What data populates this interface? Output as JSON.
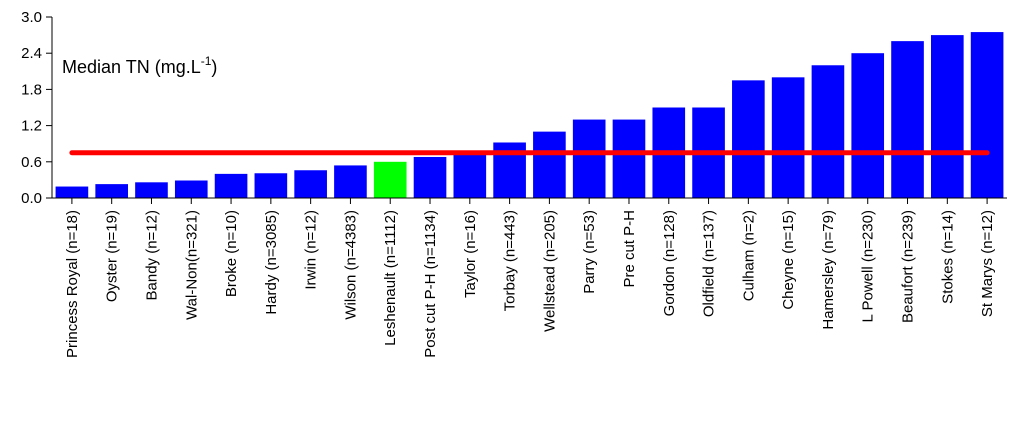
{
  "chart_data": {
    "type": "bar",
    "title": "Median TN (mg.L",
    "title_sup": "-1",
    "title_close": ")",
    "xlabel": "",
    "ylabel": "",
    "ylim": [
      0,
      3.0
    ],
    "yticks": [
      "0.0",
      "0.6",
      "1.2",
      "1.8",
      "2.4",
      "3.0"
    ],
    "ytick_values": [
      0,
      0.6,
      1.2,
      1.8,
      2.4,
      3.0
    ],
    "grid": false,
    "categories": [
      "Princess Royal (n=18)",
      "Oyster (n=19)",
      "Bandy (n=12)",
      "Wal-Non(n=321)",
      "Broke (n=10)",
      "Hardy (n=3085)",
      "Irwin (n=12)",
      "Wilson (n=4383)",
      "Leshenault (n=1112)",
      "Post cut P-H (n=1134)",
      "Taylor (n=16)",
      "Torbay (n=443)",
      "Wellstead (n=205)",
      "Parry (n=53)",
      "Pre cut P-H",
      "Gordon (n=128)",
      "Oldfield (n=137)",
      "Culham (n=2)",
      "Cheyne (n=15)",
      "Hamersley (n=79)",
      "L Powell (n=230)",
      "Beaufort (n=239)",
      "Stokes (n=14)",
      "St Marys (n=12)"
    ],
    "values": [
      0.19,
      0.23,
      0.26,
      0.29,
      0.4,
      0.41,
      0.46,
      0.54,
      0.6,
      0.68,
      0.75,
      0.92,
      1.1,
      1.3,
      1.3,
      1.5,
      1.5,
      1.95,
      2.0,
      2.2,
      2.4,
      2.6,
      2.7,
      2.75
    ],
    "highlight_index": 8,
    "reference_line": 0.75,
    "colors": {
      "bar": "#0000ff",
      "highlight": "#00ff00",
      "reference": "#ff0000",
      "axis": "#000000"
    }
  }
}
